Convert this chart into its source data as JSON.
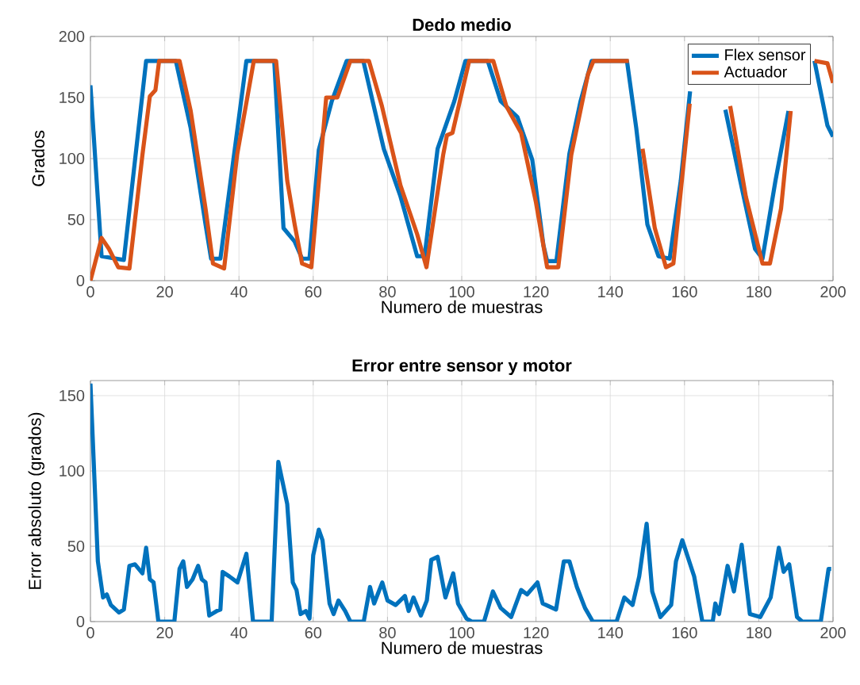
{
  "chart_data": [
    {
      "type": "line",
      "title": "Dedo medio",
      "xlabel": "Numero de muestras",
      "ylabel": "Grados",
      "xlim": [
        0,
        200
      ],
      "ylim": [
        0,
        200
      ],
      "xticks": [
        0,
        20,
        40,
        60,
        80,
        100,
        120,
        140,
        160,
        180,
        200
      ],
      "yticks": [
        0,
        50,
        100,
        150,
        200
      ],
      "grid": true,
      "legend": "top right",
      "series": [
        {
          "name": "Flex sensor",
          "color": "#0072bd",
          "x": [
            0,
            3,
            9,
            15,
            23,
            27,
            31,
            32.5,
            35,
            42,
            49.5,
            52,
            55,
            57,
            59,
            61.5,
            65,
            69,
            73.5,
            76,
            79,
            83.5,
            88,
            90,
            93.5,
            98,
            101,
            107,
            110.5,
            115,
            119,
            122,
            123,
            125.5,
            129,
            132,
            135,
            144.5,
            147,
            150,
            153,
            156,
            159,
            161.5,
            162,
            171,
            175,
            179,
            181,
            184.5,
            188,
            190,
            195,
            198.5,
            200
          ],
          "values": [
            160,
            20,
            17,
            180,
            180,
            125,
            46,
            18,
            18,
            180,
            180,
            43,
            32,
            18,
            18,
            107,
            147,
            180,
            180,
            147,
            108,
            69,
            20,
            20,
            108,
            147,
            180,
            180,
            147,
            134,
            99,
            29,
            16,
            16,
            104,
            147,
            180,
            180,
            125,
            46,
            20,
            18,
            82,
            155,
            null,
            140,
            82,
            26,
            18,
            82,
            139,
            null,
            180,
            127,
            118
          ]
        },
        {
          "name": "Actuador",
          "color": "#d95319",
          "x": [
            0,
            3,
            5,
            7.5,
            10.5,
            14,
            16,
            17.5,
            18.5,
            24,
            27,
            31,
            33,
            36,
            39.5,
            44,
            50,
            53,
            55,
            57,
            59.5,
            63.5,
            66.5,
            70,
            75,
            78.5,
            83.5,
            88,
            90.5,
            95,
            96,
            97.5,
            102,
            108.5,
            112,
            116,
            120,
            123,
            126,
            129.5,
            134,
            135.5,
            145,
            146.5,
            148.7,
            152,
            155,
            157,
            161.4,
            162,
            172.3,
            176.5,
            181,
            183,
            186,
            188.6,
            190,
            195,
            198.5,
            200
          ],
          "values": [
            0,
            35,
            26,
            11,
            10,
            103,
            151,
            156,
            180,
            180,
            139,
            59,
            14,
            10,
            103,
            180,
            180,
            82,
            46,
            14,
            11,
            150,
            150,
            180,
            180,
            143,
            78,
            38,
            11,
            103,
            119,
            121,
            180,
            180,
            143,
            121,
            64,
            11,
            11,
            103,
            169,
            180,
            180,
            null,
            108,
            43,
            11,
            14,
            145,
            null,
            143,
            69,
            14,
            14,
            59,
            139,
            null,
            180,
            178,
            162
          ]
        }
      ]
    },
    {
      "type": "line",
      "title": "Error entre sensor y motor",
      "xlabel": "Numero de muestras",
      "ylabel": "Error absoluto (grados)",
      "xlim": [
        0,
        200
      ],
      "ylim": [
        0,
        160
      ],
      "xticks": [
        0,
        20,
        40,
        60,
        80,
        100,
        120,
        140,
        160,
        180,
        200
      ],
      "yticks": [
        0,
        50,
        100,
        150
      ],
      "grid": true,
      "series": [
        {
          "color": "#0072bd",
          "x": [
            0,
            2,
            3.4,
            4.4,
            5.5,
            7.7,
            9,
            10.5,
            12,
            14,
            15,
            16,
            17,
            18.3,
            22.6,
            24,
            25,
            26,
            27.5,
            29,
            30,
            31,
            32,
            34,
            35,
            35.6,
            37.4,
            39.6,
            42,
            43.8,
            48.8,
            50.6,
            53,
            54.5,
            55.5,
            56.6,
            58,
            59,
            60,
            61.5,
            62.5,
            64.4,
            65.5,
            66.8,
            68.6,
            70,
            73.6,
            75.3,
            76.4,
            78.6,
            80,
            82.2,
            84.7,
            85.7,
            87,
            89,
            90.6,
            91.8,
            93.5,
            95.6,
            97.7,
            99,
            101.3,
            102.7,
            106,
            108.4,
            110.5,
            113.3,
            116,
            117.6,
            120.4,
            121.8,
            125.4,
            127.5,
            129,
            131,
            133.2,
            135.3,
            141.7,
            143.8,
            146,
            147.8,
            149.8,
            151.3,
            153.5,
            156.4,
            157.7,
            159.4,
            162.6,
            164.8,
            167.6,
            168.3,
            169.3,
            171.6,
            173.3,
            175.4,
            177.6,
            180.4,
            183.2,
            185.4,
            186.7,
            188.2,
            190.3,
            191.7,
            196.7,
            198.8,
            199.5
          ],
          "values": [
            158,
            40,
            16,
            18,
            11,
            6,
            8,
            37,
            38,
            32,
            49,
            28,
            26,
            0,
            0,
            35,
            40,
            23,
            28,
            37,
            28,
            26,
            4,
            7,
            8,
            33,
            30,
            26,
            45,
            0,
            0,
            106,
            78,
            26,
            21,
            5,
            7,
            2,
            44,
            61,
            54,
            12,
            5,
            14,
            7,
            0,
            0,
            23,
            12,
            26,
            14,
            11,
            17,
            7,
            16,
            4,
            14,
            41,
            43,
            16,
            32,
            12,
            2,
            0,
            0,
            20,
            9,
            3,
            21,
            18,
            26,
            12,
            8,
            40,
            40,
            23,
            9,
            0,
            0,
            16,
            11,
            30,
            65,
            20,
            3,
            11,
            40,
            54,
            30,
            0,
            0,
            12,
            5,
            37,
            20,
            51,
            5,
            3,
            16,
            49,
            33,
            38,
            3,
            0,
            0,
            35,
            35
          ]
        }
      ]
    }
  ]
}
